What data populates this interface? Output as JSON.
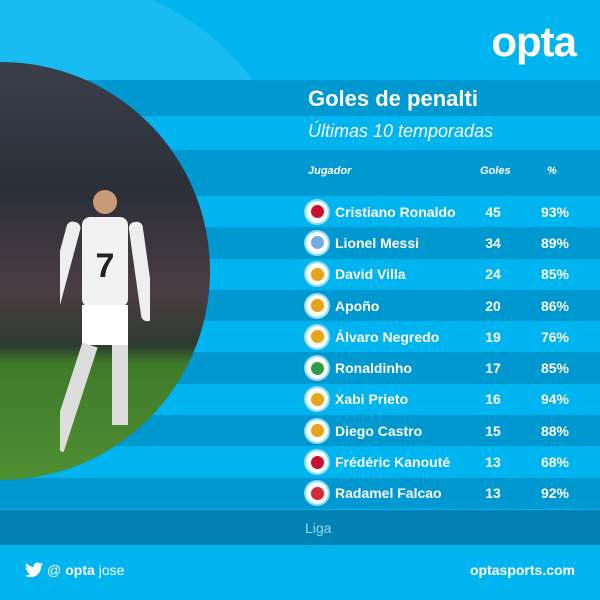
{
  "brand": {
    "logo": "opta",
    "website": "optasports.com",
    "twitter_icon": "twitter-bird-icon",
    "handle_prefix": "@",
    "handle_brand": "opta",
    "handle_name": "jose"
  },
  "title": "Goles de penalti",
  "subtitle": "Últimas 10 temporadas",
  "columns": {
    "player": "Jugador",
    "goals": "Goles",
    "pct": "%"
  },
  "rows": [
    {
      "name": "Cristiano Ronaldo",
      "goals": "45",
      "pct": "93%",
      "flag": "portugal",
      "color": "#c8102e"
    },
    {
      "name": "Lionel Messi",
      "goals": "34",
      "pct": "89%",
      "flag": "argentina",
      "color": "#74acdf"
    },
    {
      "name": "David Villa",
      "goals": "24",
      "pct": "85%",
      "flag": "spain",
      "color": "#e8a317"
    },
    {
      "name": "Apoño",
      "goals": "20",
      "pct": "86%",
      "flag": "spain",
      "color": "#e8a317"
    },
    {
      "name": "Álvaro Negredo",
      "goals": "19",
      "pct": "76%",
      "flag": "spain",
      "color": "#e8a317"
    },
    {
      "name": "Ronaldinho",
      "goals": "17",
      "pct": "85%",
      "flag": "brazil",
      "color": "#2e9b47"
    },
    {
      "name": "Xabi Prieto",
      "goals": "16",
      "pct": "94%",
      "flag": "spain",
      "color": "#e8a317"
    },
    {
      "name": "Diego Castro",
      "goals": "15",
      "pct": "88%",
      "flag": "spain",
      "color": "#e8a317"
    },
    {
      "name": "Frédéric Kanouté",
      "goals": "13",
      "pct": "68%",
      "flag": "mali",
      "color": "#c8102e"
    },
    {
      "name": "Radamel Falcao",
      "goals": "13",
      "pct": "92%",
      "flag": "colombia",
      "color": "#d8273a"
    }
  ],
  "footer_note": "Liga",
  "colors": {
    "background": "#00b4ef",
    "dark_row": "#0098d0",
    "liga_band": "#0083b4"
  }
}
